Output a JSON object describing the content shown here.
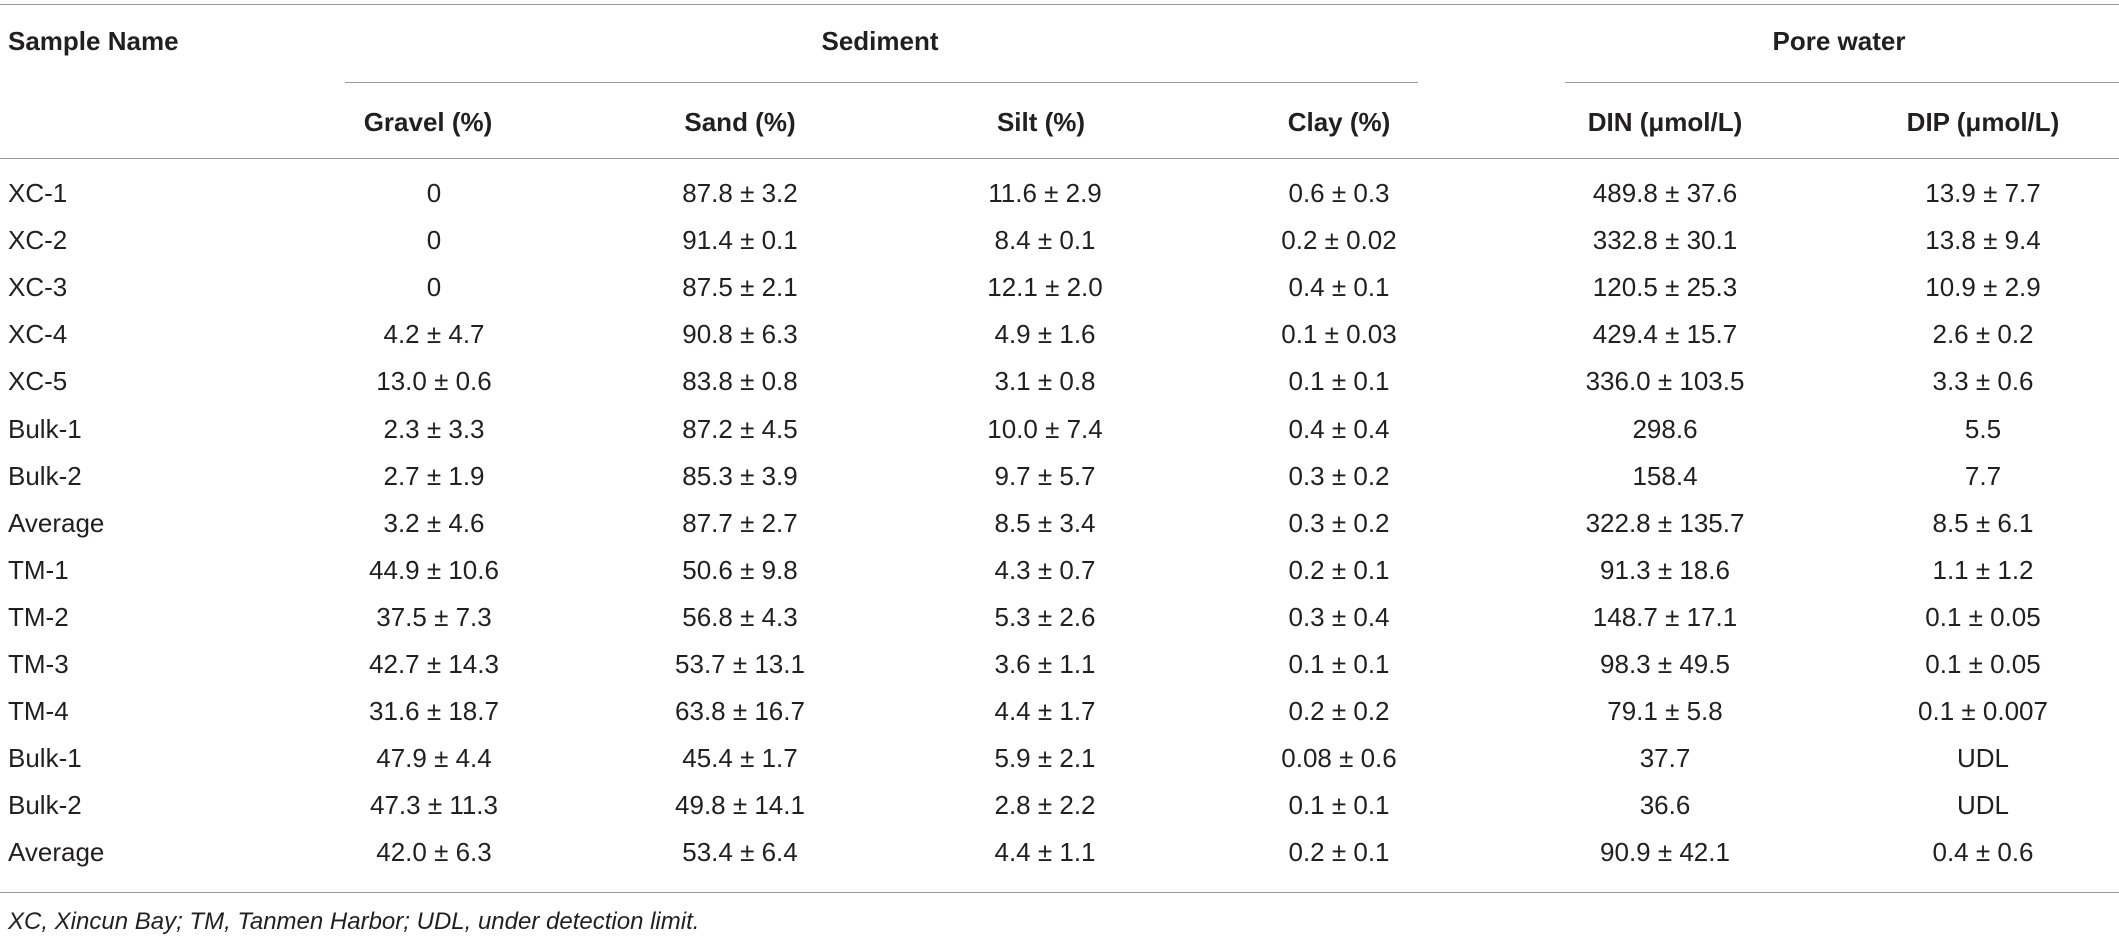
{
  "header": {
    "sample_name": "Sample Name",
    "sediment": "Sediment",
    "pore_water": "Pore water",
    "columns": [
      "Gravel (%)",
      "Sand (%)",
      "Silt (%)",
      "Clay (%)",
      "DIN (μmol/L)",
      "DIP (μmol/L)"
    ]
  },
  "rows": [
    [
      "XC-1",
      "0",
      "87.8 ± 3.2",
      "11.6 ± 2.9",
      "0.6 ± 0.3",
      "489.8 ± 37.6",
      "13.9 ± 7.7"
    ],
    [
      "XC-2",
      "0",
      "91.4 ± 0.1",
      "8.4 ± 0.1",
      "0.2 ± 0.02",
      "332.8 ± 30.1",
      "13.8 ± 9.4"
    ],
    [
      "XC-3",
      "0",
      "87.5 ± 2.1",
      "12.1 ± 2.0",
      "0.4 ± 0.1",
      "120.5 ± 25.3",
      "10.9 ± 2.9"
    ],
    [
      "XC-4",
      "4.2 ± 4.7",
      "90.8 ± 6.3",
      "4.9 ± 1.6",
      "0.1 ± 0.03",
      "429.4 ± 15.7",
      "2.6 ± 0.2"
    ],
    [
      "XC-5",
      "13.0 ± 0.6",
      "83.8 ± 0.8",
      "3.1 ± 0.8",
      "0.1 ± 0.1",
      "336.0 ± 103.5",
      "3.3 ± 0.6"
    ],
    [
      "Bulk-1",
      "2.3 ± 3.3",
      "87.2 ± 4.5",
      "10.0 ± 7.4",
      "0.4 ± 0.4",
      "298.6",
      "5.5"
    ],
    [
      "Bulk-2",
      "2.7 ± 1.9",
      "85.3 ± 3.9",
      "9.7 ± 5.7",
      "0.3 ± 0.2",
      "158.4",
      "7.7"
    ],
    [
      "Average",
      "3.2 ± 4.6",
      "87.7 ± 2.7",
      "8.5 ± 3.4",
      "0.3 ± 0.2",
      "322.8 ± 135.7",
      "8.5 ± 6.1"
    ],
    [
      "TM-1",
      "44.9 ± 10.6",
      "50.6 ± 9.8",
      "4.3 ± 0.7",
      "0.2 ± 0.1",
      "91.3 ± 18.6",
      "1.1 ± 1.2"
    ],
    [
      "TM-2",
      "37.5 ± 7.3",
      "56.8 ± 4.3",
      "5.3 ± 2.6",
      "0.3 ± 0.4",
      "148.7 ± 17.1",
      "0.1 ± 0.05"
    ],
    [
      "TM-3",
      "42.7 ± 14.3",
      "53.7 ± 13.1",
      "3.6 ± 1.1",
      "0.1 ± 0.1",
      "98.3 ± 49.5",
      "0.1 ± 0.05"
    ],
    [
      "TM-4",
      "31.6 ± 18.7",
      "63.8 ± 16.7",
      "4.4 ± 1.7",
      "0.2 ± 0.2",
      "79.1 ± 5.8",
      "0.1 ± 0.007"
    ],
    [
      "Bulk-1",
      "47.9 ± 4.4",
      "45.4 ± 1.7",
      "5.9 ± 2.1",
      "0.08 ± 0.6",
      "37.7",
      "UDL"
    ],
    [
      "Bulk-2",
      "47.3 ± 11.3",
      "49.8 ± 14.1",
      "2.8 ± 2.2",
      "0.1 ± 0.1",
      "36.6",
      "UDL"
    ],
    [
      "Average",
      "42.0 ± 6.3",
      "53.4 ± 6.4",
      "4.4 ± 1.1",
      "0.2 ± 0.1",
      "90.9 ± 42.1",
      "0.4 ± 0.6"
    ]
  ],
  "footnote": "XC, Xincun Bay; TM, Tanmen Harbor; UDL, under detection limit."
}
